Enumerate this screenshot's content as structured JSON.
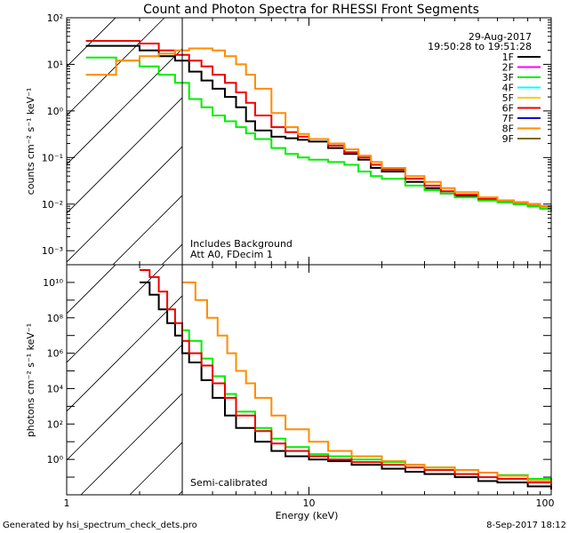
{
  "title": "Count and Photon Spectra for RHESSI Front Segments",
  "date": "29-Aug-2017",
  "time_range": "19:50:28 to 19:51:28",
  "x_axis": {
    "label": "Energy (keV)",
    "range": [
      1,
      100
    ],
    "scale": "log",
    "tick_labels": [
      "1",
      "10",
      "100"
    ]
  },
  "legend": [
    {
      "label": "1F",
      "color": "#000000"
    },
    {
      "label": "2F",
      "color": "#ff00ff"
    },
    {
      "label": "3F",
      "color": "#00ee00"
    },
    {
      "label": "4F",
      "color": "#00ffff"
    },
    {
      "label": "5F",
      "color": "#ffcc00"
    },
    {
      "label": "6F",
      "color": "#ee0000"
    },
    {
      "label": "7F",
      "color": "#0000cc"
    },
    {
      "label": "8F",
      "color": "#ff8c00"
    },
    {
      "label": "9F",
      "color": "#7a6a10"
    }
  ],
  "colors": {
    "threshold_line": "#000000",
    "hatch": "#000000"
  },
  "annotations": {
    "top_line1": "Includes Background",
    "top_line2": "Att A0, FDecim 1",
    "bottom": "Semi-calibrated"
  },
  "footer": {
    "left": "Generated by hsi_spectrum_check_dets.pro",
    "right": "8-Sep-2017 18:12"
  },
  "chart_data": [
    {
      "type": "line",
      "panel": "counts",
      "ylabel": "counts cm⁻² s⁻¹ keV⁻¹",
      "yscale": "log",
      "ylim": [
        0.0005,
        100
      ],
      "ytick_labels": [
        "10⁻³",
        "10⁻²",
        "10⁻¹",
        "10⁰",
        "10¹",
        "10²"
      ],
      "ytick_values": [
        0.001,
        0.01,
        0.1,
        1,
        10,
        100
      ],
      "threshold_energy_keV": 3,
      "series": [
        {
          "name": "1F",
          "color": "#000000",
          "x": [
            1.2,
            1.6,
            2,
            2.4,
            2.8,
            3.2,
            3.6,
            4,
            4.5,
            5,
            5.5,
            6,
            7,
            8,
            9,
            10,
            12,
            14,
            16,
            18,
            20,
            25,
            30,
            35,
            40,
            50,
            60,
            70,
            80,
            90,
            100
          ],
          "y": [
            25,
            25,
            20,
            15,
            12,
            7,
            4.5,
            3,
            2,
            1.2,
            0.6,
            0.38,
            0.28,
            0.26,
            0.24,
            0.22,
            0.16,
            0.12,
            0.09,
            0.06,
            0.05,
            0.03,
            0.022,
            0.017,
            0.015,
            0.012,
            0.011,
            0.01,
            0.009,
            0.008,
            0.008
          ]
        },
        {
          "name": "3F",
          "color": "#00ee00",
          "x": [
            1.2,
            1.6,
            2,
            2.4,
            2.8,
            3.2,
            3.6,
            4,
            4.5,
            5,
            5.5,
            6,
            7,
            8,
            9,
            10,
            12,
            14,
            16,
            18,
            20,
            25,
            30,
            35,
            40,
            50,
            60,
            70,
            80,
            90,
            100
          ],
          "y": [
            14,
            12,
            9,
            6,
            4,
            1.8,
            1.2,
            0.8,
            0.6,
            0.45,
            0.33,
            0.25,
            0.16,
            0.12,
            0.1,
            0.09,
            0.08,
            0.07,
            0.05,
            0.04,
            0.035,
            0.025,
            0.02,
            0.017,
            0.014,
            0.012,
            0.011,
            0.01,
            0.009,
            0.008,
            0.007
          ]
        },
        {
          "name": "6F",
          "color": "#ee0000",
          "x": [
            1.2,
            1.6,
            2,
            2.4,
            2.8,
            3.2,
            3.6,
            4,
            4.5,
            5,
            5.5,
            6,
            7,
            8,
            9,
            10,
            12,
            14,
            16,
            18,
            20,
            25,
            30,
            35,
            40,
            50,
            60,
            70,
            80,
            90,
            100
          ],
          "y": [
            32,
            32,
            28,
            20,
            16,
            12,
            9,
            6,
            4,
            2.5,
            1.5,
            0.8,
            0.45,
            0.35,
            0.28,
            0.25,
            0.18,
            0.13,
            0.1,
            0.07,
            0.055,
            0.035,
            0.025,
            0.019,
            0.016,
            0.013,
            0.012,
            0.011,
            0.01,
            0.009,
            0.008
          ]
        },
        {
          "name": "8F",
          "color": "#ff8c00",
          "x": [
            1.2,
            1.6,
            2,
            2.4,
            2.8,
            3.2,
            3.6,
            4,
            4.5,
            5,
            5.5,
            6,
            7,
            8,
            9,
            10,
            12,
            14,
            16,
            18,
            20,
            25,
            30,
            35,
            40,
            50,
            60,
            70,
            80,
            90,
            100
          ],
          "y": [
            6,
            12,
            15,
            17,
            20,
            22,
            22,
            20,
            15,
            10,
            6,
            3,
            0.9,
            0.45,
            0.32,
            0.25,
            0.2,
            0.15,
            0.11,
            0.08,
            0.06,
            0.04,
            0.03,
            0.022,
            0.018,
            0.014,
            0.012,
            0.011,
            0.01,
            0.009,
            0.008
          ]
        }
      ]
    },
    {
      "type": "line",
      "panel": "photons",
      "ylabel": "photons cm⁻² s⁻¹ keV⁻¹",
      "yscale": "log",
      "ylim": [
        0.01,
        100000000000
      ],
      "ytick_labels": [
        "10⁰",
        "10²",
        "10⁴",
        "10⁶",
        "10⁸",
        "10¹⁰"
      ],
      "ytick_values": [
        1,
        100,
        10000,
        1000000,
        100000000,
        10000000000
      ],
      "threshold_energy_keV": 3,
      "series": [
        {
          "name": "1F",
          "color": "#000000",
          "x": [
            2,
            2.2,
            2.4,
            2.6,
            2.8,
            3,
            3.2,
            3.6,
            4,
            4.5,
            5,
            6,
            7,
            8,
            10,
            12,
            15,
            20,
            25,
            30,
            40,
            50,
            60,
            80,
            100
          ],
          "y": [
            10000000000,
            2000000000,
            300000000,
            50000000,
            10000000,
            1000000,
            300000,
            30000,
            3000,
            300,
            60,
            10,
            3,
            1.5,
            1,
            0.8,
            0.5,
            0.3,
            0.2,
            0.15,
            0.1,
            0.06,
            0.05,
            0.03,
            0.02
          ]
        },
        {
          "name": "3F",
          "color": "#00ee00",
          "x": [
            3,
            3.2,
            3.6,
            4,
            4.5,
            5,
            6,
            7,
            8,
            10,
            12,
            15,
            20,
            25,
            30,
            40,
            50,
            60,
            80,
            100
          ],
          "y": [
            20000000,
            5000000,
            500000,
            50000,
            5000,
            500,
            60,
            15,
            5,
            2,
            1.5,
            1,
            0.7,
            0.5,
            0.35,
            0.25,
            0.18,
            0.13,
            0.08,
            0.05
          ]
        },
        {
          "name": "6F",
          "color": "#ee0000",
          "x": [
            2,
            2.2,
            2.4,
            2.6,
            2.8,
            3,
            3.2,
            3.6,
            4,
            4.5,
            5,
            6,
            7,
            8,
            10,
            12,
            15,
            20,
            25,
            30,
            40,
            50,
            60,
            80,
            100
          ],
          "y": [
            50000000000,
            20000000000,
            3000000000,
            300000000,
            50000000,
            5000000,
            1000000,
            200000,
            20000,
            3000,
            300,
            40,
            8,
            3,
            1.5,
            1,
            0.7,
            0.5,
            0.35,
            0.25,
            0.15,
            0.1,
            0.08,
            0.05,
            0.03
          ]
        },
        {
          "name": "8F",
          "color": "#ff8c00",
          "x": [
            3,
            3.4,
            3.8,
            4.2,
            4.6,
            5,
            5.5,
            6,
            7,
            8,
            10,
            12,
            15,
            20,
            25,
            30,
            40,
            50,
            60,
            80,
            100
          ],
          "y": [
            10000000000,
            1000000000,
            100000000,
            10000000,
            1000000,
            100000,
            20000,
            3000,
            300,
            50,
            10,
            3,
            1.5,
            0.8,
            0.5,
            0.35,
            0.25,
            0.18,
            0.12,
            0.06,
            0.04
          ]
        }
      ]
    }
  ]
}
